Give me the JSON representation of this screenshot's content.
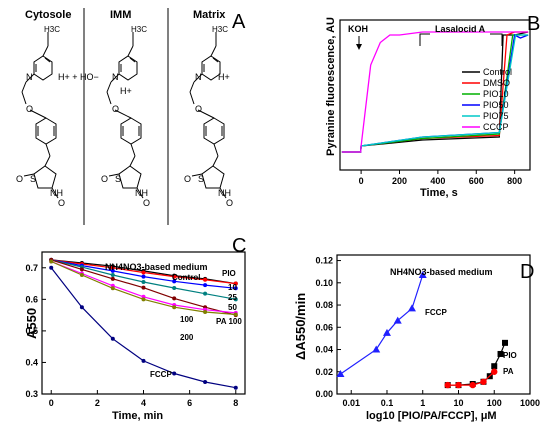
{
  "panel_labels": {
    "A": "A",
    "B": "B",
    "C": "C",
    "D": "D"
  },
  "panelA": {
    "columns": [
      "Cytosole",
      "IMM",
      "Matrix"
    ],
    "cytosole_ions": "H+ + HO−",
    "imm_ion": "H+",
    "matrix_ion": "H+",
    "ethyl": "H3C"
  },
  "chart_data": [
    {
      "panel": "B",
      "type": "line",
      "xlabel": "Time, s",
      "ylabel": "Pyranine fluorescence, AU",
      "xticks": [
        0,
        200,
        400,
        600,
        800
      ],
      "xlim": [
        -110,
        880
      ],
      "annotations": [
        "KOH",
        "Lasalocid A"
      ],
      "legend_position": "center-right",
      "series": [
        {
          "name": "Control",
          "color": "#000000",
          "x": [
            -100,
            -2,
            0,
            320,
            720,
            740,
            800,
            870
          ],
          "y": [
            0.12,
            0.12,
            0.16,
            0.2,
            0.22,
            0.9,
            0.9,
            0.92
          ]
        },
        {
          "name": "DMSO",
          "color": "#ff0000",
          "x": [
            -100,
            -2,
            0,
            320,
            720,
            760,
            800,
            870
          ],
          "y": [
            0.12,
            0.12,
            0.16,
            0.21,
            0.23,
            0.9,
            0.92,
            0.92
          ]
        },
        {
          "name": "PIO10",
          "color": "#00b000",
          "x": [
            -100,
            -2,
            0,
            320,
            720,
            790,
            820,
            870
          ],
          "y": [
            0.12,
            0.12,
            0.16,
            0.21,
            0.24,
            0.9,
            0.9,
            0.9
          ]
        },
        {
          "name": "PIO50",
          "color": "#0000ff",
          "x": [
            -100,
            -2,
            0,
            320,
            720,
            800,
            830,
            870
          ],
          "y": [
            0.12,
            0.12,
            0.16,
            0.22,
            0.25,
            0.9,
            0.88,
            0.9
          ]
        },
        {
          "name": "PIO75",
          "color": "#00c8c8",
          "x": [
            -100,
            -2,
            0,
            320,
            720,
            805,
            830,
            870
          ],
          "y": [
            0.12,
            0.12,
            0.16,
            0.22,
            0.25,
            0.9,
            0.9,
            0.9
          ]
        },
        {
          "name": "CCCP",
          "color": "#ff00ff",
          "x": [
            -100,
            -2,
            0,
            50,
            100,
            150,
            200,
            320,
            330,
            870
          ],
          "y": [
            0.12,
            0.12,
            0.16,
            0.7,
            0.85,
            0.9,
            0.9,
            0.92,
            0.92,
            0.92
          ]
        }
      ]
    },
    {
      "panel": "C",
      "type": "line",
      "title": "NH4NO3-based medium",
      "xlabel": "Time, min",
      "ylabel": "A550",
      "xticks": [
        0,
        2,
        4,
        6,
        8
      ],
      "yticks": [
        0.3,
        0.4,
        0.5,
        0.6,
        0.7
      ],
      "xlim": [
        -0.4,
        8.4
      ],
      "ylim": [
        0.3,
        0.75
      ],
      "x": [
        0,
        1.33,
        2.67,
        4,
        5.33,
        6.67,
        8
      ],
      "labels": [
        "Control",
        "PIO",
        "10",
        "25",
        "50",
        "PA 100",
        "100",
        "200",
        "FCCP"
      ],
      "series": [
        {
          "name": "Control",
          "color": "#000000",
          "y": [
            0.725,
            0.715,
            0.705,
            0.69,
            0.675,
            0.665,
            0.65
          ]
        },
        {
          "name": "PIO 10",
          "color": "#ff0000",
          "y": [
            0.725,
            0.712,
            0.7,
            0.685,
            0.672,
            0.662,
            0.65
          ]
        },
        {
          "name": "PIO 25",
          "color": "#0000ff",
          "y": [
            0.725,
            0.707,
            0.69,
            0.672,
            0.657,
            0.645,
            0.635
          ]
        },
        {
          "name": "PIO 50",
          "color": "#008080",
          "y": [
            0.725,
            0.702,
            0.677,
            0.655,
            0.636,
            0.618,
            0.6
          ]
        },
        {
          "name": "PA 100",
          "color": "#800000",
          "y": [
            0.725,
            0.695,
            0.665,
            0.637,
            0.603,
            0.575,
            0.55
          ]
        },
        {
          "name": "PIO 100",
          "color": "#ff00ff",
          "y": [
            0.72,
            0.682,
            0.643,
            0.608,
            0.582,
            0.567,
            0.557
          ]
        },
        {
          "name": "PIO 200",
          "color": "#808000",
          "y": [
            0.72,
            0.677,
            0.635,
            0.6,
            0.575,
            0.56,
            0.552
          ]
        },
        {
          "name": "FCCP",
          "color": "#000080",
          "y": [
            0.7,
            0.575,
            0.475,
            0.405,
            0.365,
            0.338,
            0.32
          ]
        }
      ]
    },
    {
      "panel": "D",
      "type": "scatter",
      "title": "NH4NO3-based medium",
      "xlabel": "log10 [PIO/PA/FCCP], μM",
      "ylabel": "ΔA550/min",
      "xscale": "log",
      "xticks": [
        0.01,
        0.1,
        1,
        10,
        100,
        1000
      ],
      "yticks": [
        0.0,
        0.02,
        0.04,
        0.06,
        0.08,
        0.1,
        0.12
      ],
      "xlim": [
        0.004,
        1000
      ],
      "ylim": [
        0.0,
        0.125
      ],
      "series": [
        {
          "name": "FCCP",
          "color": "#2020ff",
          "marker": "triangle",
          "x": [
            0.005,
            0.05,
            0.1,
            0.2,
            0.5,
            1
          ],
          "y": [
            0.018,
            0.04,
            0.055,
            0.066,
            0.077,
            0.107
          ]
        },
        {
          "name": "PIO",
          "color": "#000000",
          "marker": "square",
          "x": [
            5,
            10,
            25,
            50,
            75,
            100,
            150,
            200
          ],
          "y": [
            0.008,
            0.008,
            0.009,
            0.011,
            0.016,
            0.025,
            0.036,
            0.046
          ]
        },
        {
          "name": "PA",
          "color": "#ff0000",
          "marker": "circle",
          "x": [
            5,
            10,
            25,
            50,
            100
          ],
          "y": [
            0.008,
            0.008,
            0.008,
            0.011,
            0.02
          ]
        }
      ]
    }
  ]
}
